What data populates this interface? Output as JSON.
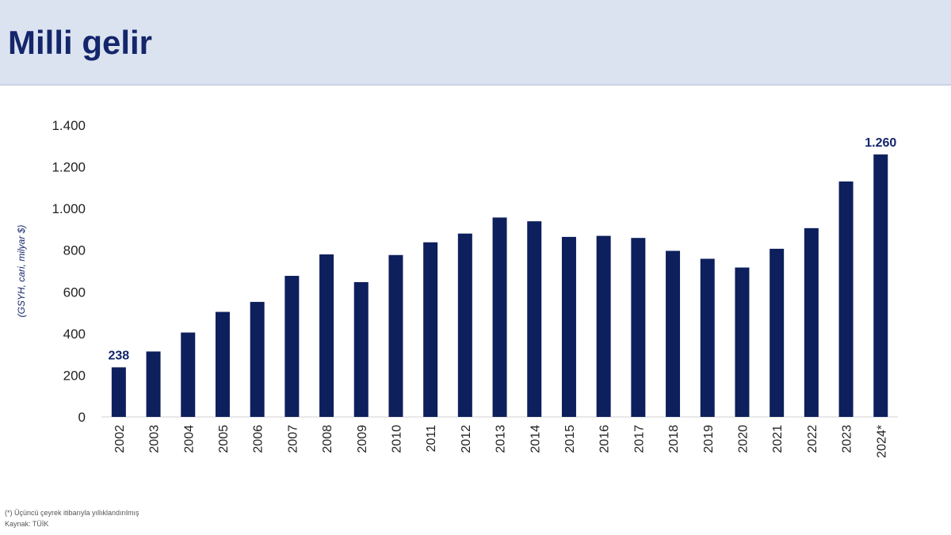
{
  "header": {
    "title": "Milli gelir"
  },
  "footnotes": {
    "note": "(*) Üçüncü çeyrek itibarıyla yıllıklandırılmış",
    "source": "Kaynak: TÜİK"
  },
  "chart_data": {
    "type": "bar",
    "ylabel": "(GSYH, cari, milyar $)",
    "ylim": [
      0,
      1400
    ],
    "yticks": [
      0,
      200,
      400,
      600,
      800,
      1000,
      1200,
      1400
    ],
    "ytick_labels": [
      "0",
      "200",
      "400",
      "600",
      "800",
      "1.000",
      "1.200",
      "1.400"
    ],
    "categories": [
      "2002",
      "2003",
      "2004",
      "2005",
      "2006",
      "2007",
      "2008",
      "2009",
      "2010",
      "2011",
      "2012",
      "2013",
      "2014",
      "2015",
      "2016",
      "2017",
      "2018",
      "2019",
      "2020",
      "2021",
      "2022",
      "2023",
      "2024*"
    ],
    "values": [
      238,
      314,
      405,
      504,
      552,
      677,
      780,
      647,
      777,
      838,
      880,
      957,
      939,
      864,
      869,
      859,
      797,
      759,
      717,
      807,
      906,
      1130,
      1260
    ],
    "data_labels": [
      {
        "index": 0,
        "text": "238"
      },
      {
        "index": 22,
        "text": "1.260"
      }
    ],
    "grid": false,
    "colors": {
      "bar": "#0d1f5c"
    }
  }
}
